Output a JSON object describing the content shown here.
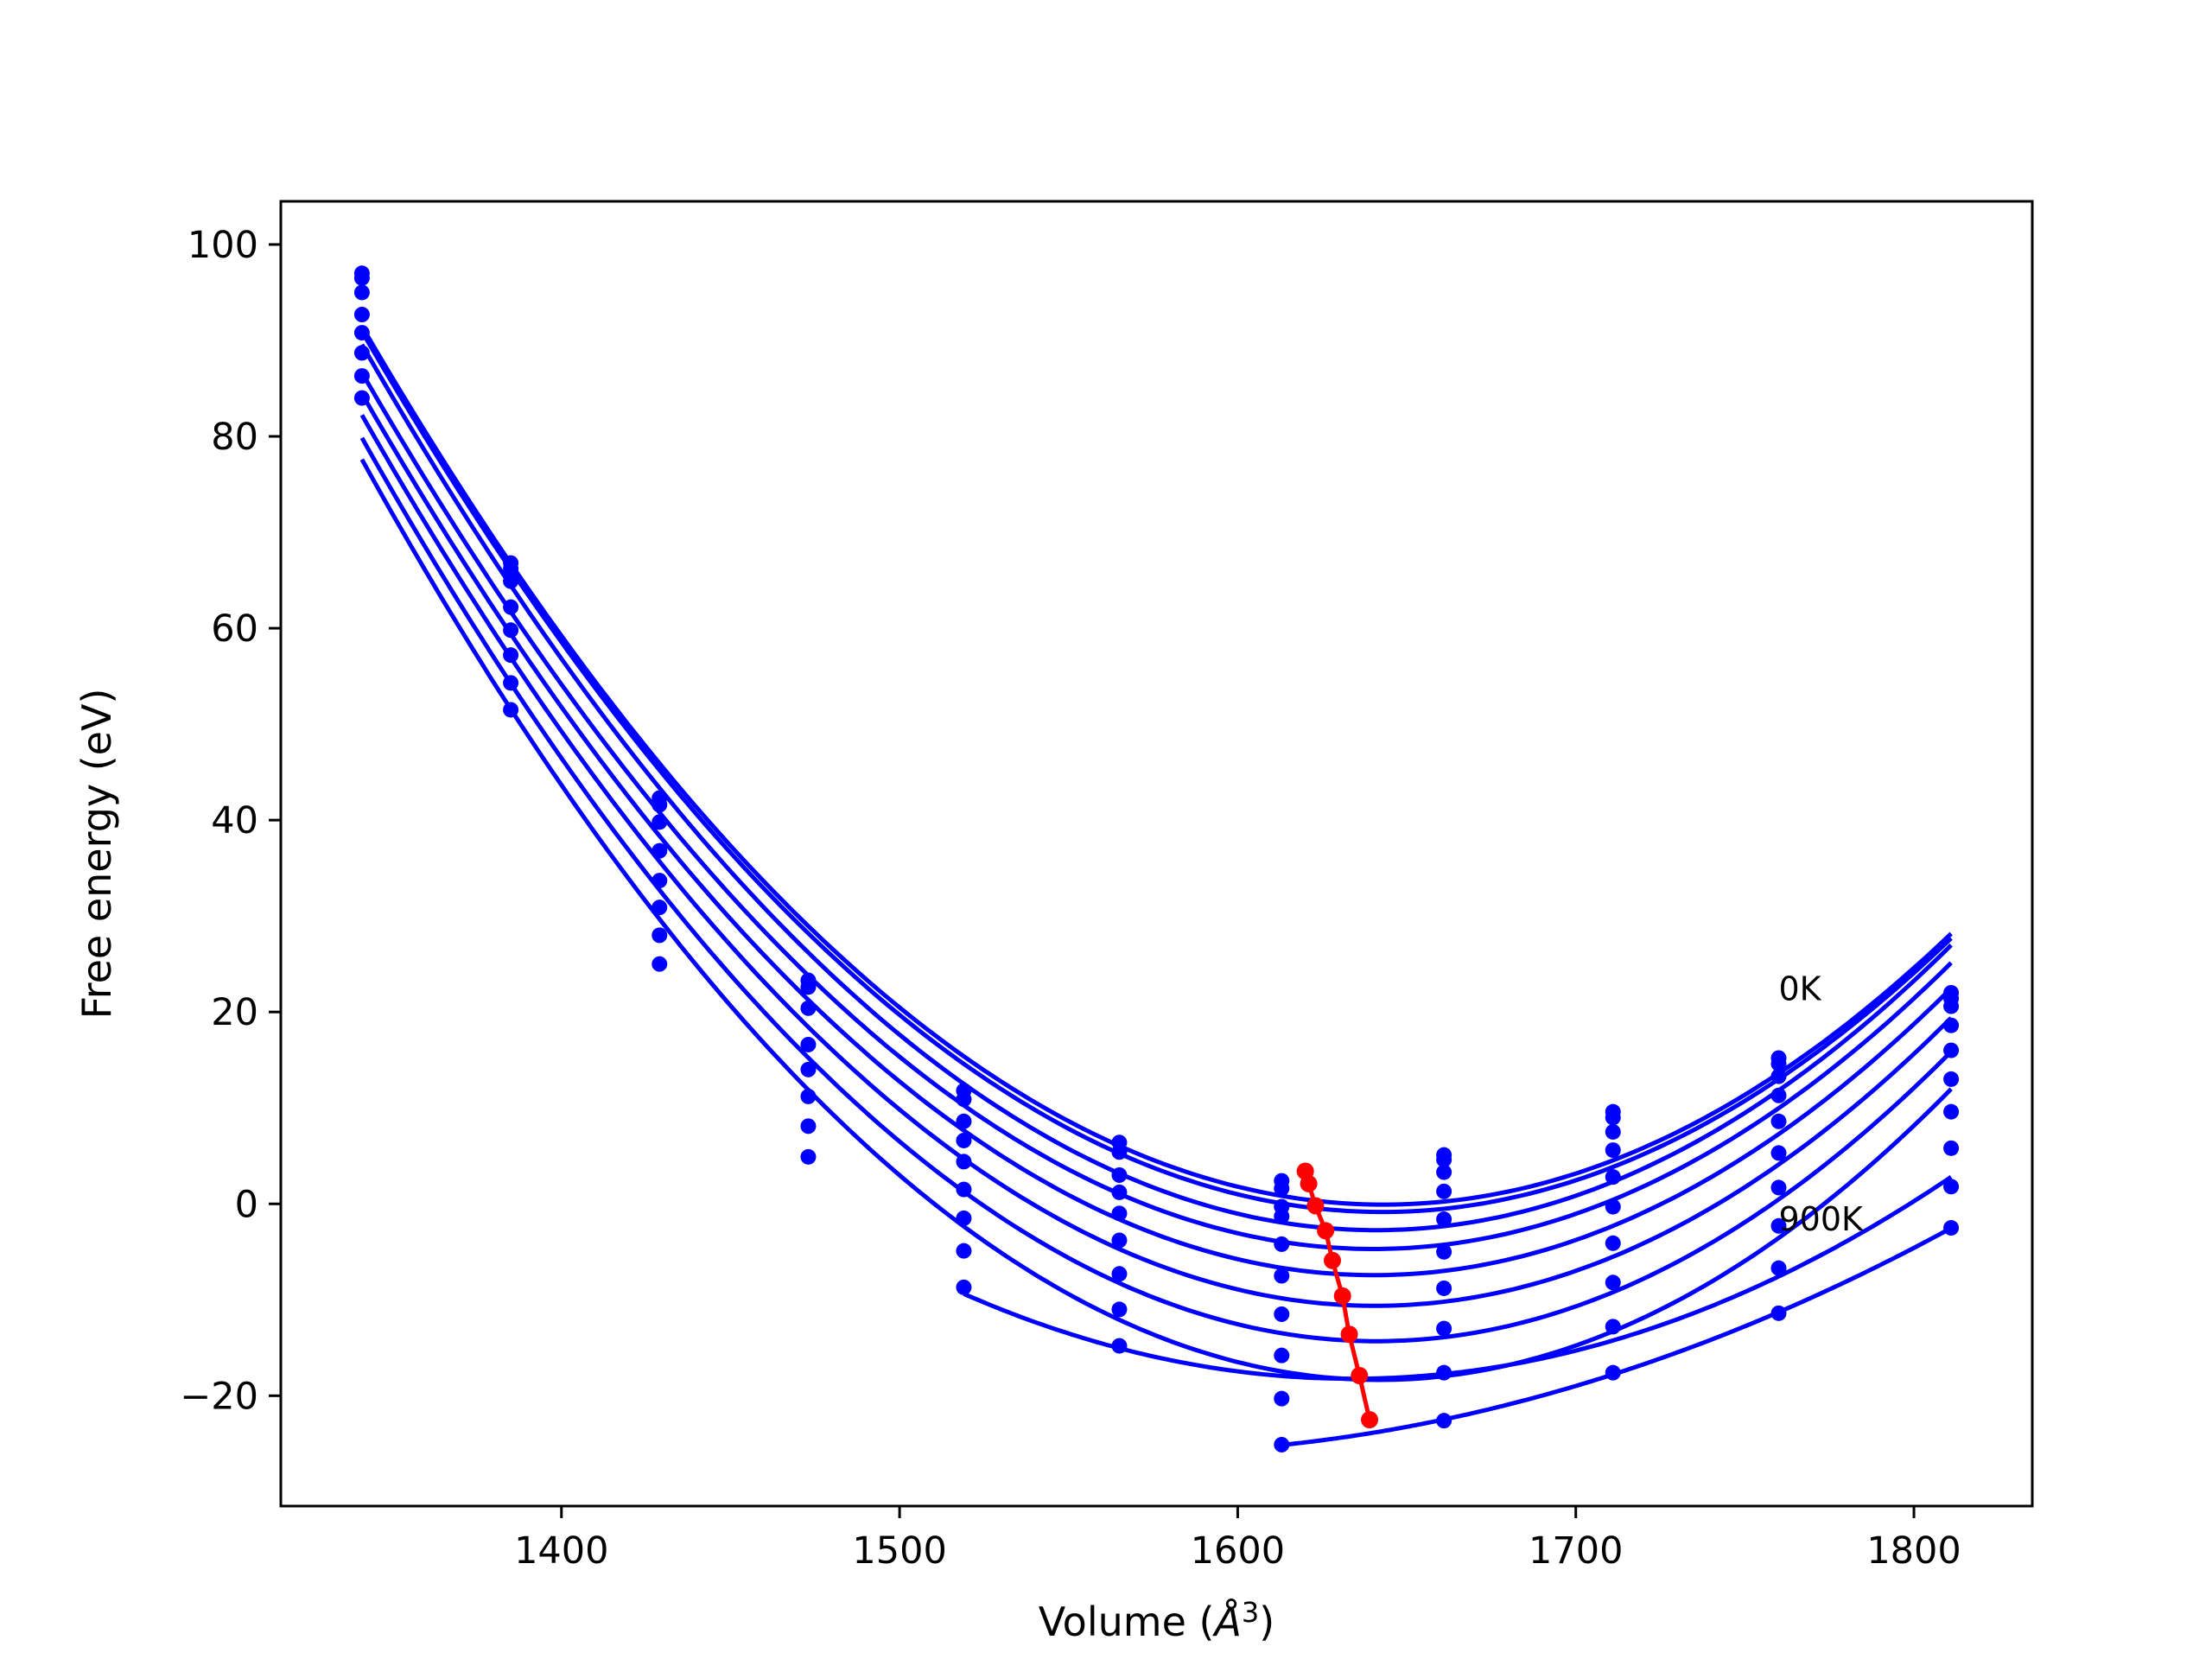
{
  "chart_data": {
    "type": "line",
    "title": "",
    "xlabel_text": "Volume (",
    "xlabel_unit": "Å",
    "xlabel_sup": "3",
    "xlabel_close": ")",
    "ylabel": "Free energy (eV)",
    "xlim": [
      1317,
      1835
    ],
    "ylim": [
      -31.5,
      104.5
    ],
    "xticks": [
      1400,
      1500,
      1600,
      1700,
      1800
    ],
    "xtick_labels": [
      "1400",
      "1500",
      "1600",
      "1700",
      "1800"
    ],
    "yticks": [
      -20,
      0,
      20,
      40,
      60,
      80,
      100
    ],
    "ytick_labels": [
      "−20",
      "0",
      "20",
      "40",
      "60",
      "80",
      "100"
    ],
    "grid": false,
    "annotations": [
      {
        "text": "0K",
        "x": 1760,
        "y": 22.5
      },
      {
        "text": "900K",
        "x": 1760,
        "y": -1.5
      }
    ],
    "colors": {
      "curves": "#0000ff",
      "minimum_path": "#ff0000",
      "axes": "#000000"
    },
    "volumes": [
      1341,
      1385,
      1429,
      1473,
      1519,
      1565,
      1613,
      1661,
      1711,
      1760,
      1811
    ],
    "series": [
      {
        "fit_min_volume": 1620,
        "fit_min_energy": 3.4,
        "points": [
          97.0,
          66.8,
          42.3,
          23.3,
          11.8,
          6.4,
          2.4,
          5.1,
          9.6,
          15.2,
          22.0
        ]
      },
      {
        "fit_min_volume": 1621,
        "fit_min_energy": 2.1,
        "points": [
          96.5,
          66.2,
          41.6,
          22.6,
          10.9,
          5.4,
          1.6,
          4.6,
          9.0,
          14.6,
          21.4
        ]
      },
      {
        "fit_min_volume": 1623,
        "fit_min_energy": -0.2,
        "points": [
          95.0,
          64.9,
          39.8,
          20.4,
          8.6,
          3.0,
          -0.3,
          3.3,
          7.5,
          13.3,
          20.6
        ]
      },
      {
        "fit_min_volume": 1626,
        "fit_min_energy": -2.8,
        "points": [
          92.7,
          62.2,
          36.8,
          16.6,
          6.6,
          1.2,
          -1.3,
          1.3,
          5.6,
          11.3,
          18.6
        ]
      },
      {
        "fit_min_volume": 1628,
        "fit_min_energy": -5.9,
        "points": [
          90.8,
          59.8,
          33.7,
          14.0,
          4.4,
          -1.0,
          -4.2,
          -1.6,
          2.8,
          8.6,
          16.0
        ]
      },
      {
        "fit_min_volume": 1631,
        "fit_min_energy": -9.6,
        "points": [
          88.7,
          57.2,
          30.9,
          11.2,
          1.5,
          -3.8,
          -7.5,
          -5.0,
          -0.3,
          5.3,
          13.0
        ]
      },
      {
        "fit_min_volume": 1633,
        "fit_min_energy": -13.6,
        "points": [
          86.3,
          54.3,
          28.0,
          8.1,
          -1.5,
          -7.3,
          -11.5,
          -8.8,
          -4.1,
          1.7,
          9.6
        ]
      },
      {
        "fit_min_volume": 1636,
        "fit_min_energy": -17.9,
        "points": [
          84.0,
          51.5,
          25.0,
          4.9,
          -4.9,
          -11.0,
          -15.8,
          -13.0,
          -8.2,
          -2.3,
          5.8
        ]
      },
      {
        "fit_min_volume": 1639,
        "fit_min_energy": -22.5,
        "points": [
          null,
          null,
          null,
          null,
          -8.7,
          -14.8,
          -20.3,
          -17.6,
          -12.8,
          -6.7,
          1.8
        ]
      },
      {
        "fit_min_volume": 1641,
        "fit_min_energy": -27.0,
        "points": [
          null,
          null,
          null,
          null,
          null,
          null,
          -25.1,
          -22.6,
          -17.6,
          -11.4,
          -2.5
        ]
      }
    ],
    "minimum_path": {
      "x": [
        1620,
        1621,
        1623,
        1626,
        1628,
        1631,
        1633,
        1636,
        1639
      ],
      "y": [
        3.4,
        2.1,
        -0.2,
        -2.8,
        -5.9,
        -9.6,
        -13.6,
        -17.9,
        -22.5
      ]
    }
  }
}
